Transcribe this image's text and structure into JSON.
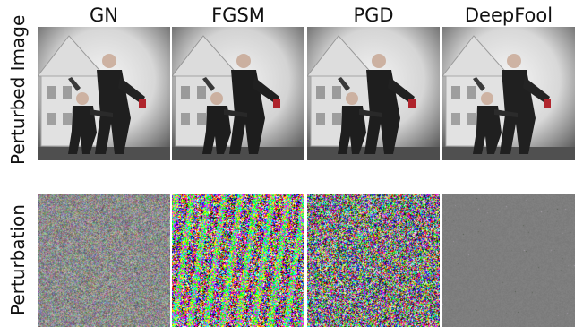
{
  "columns": [
    {
      "label": "GN"
    },
    {
      "label": "FGSM"
    },
    {
      "label": "PGD"
    },
    {
      "label": "DeepFool"
    }
  ],
  "rows": [
    {
      "label": "Perturbed Image"
    },
    {
      "label": "Perturbation"
    }
  ]
}
